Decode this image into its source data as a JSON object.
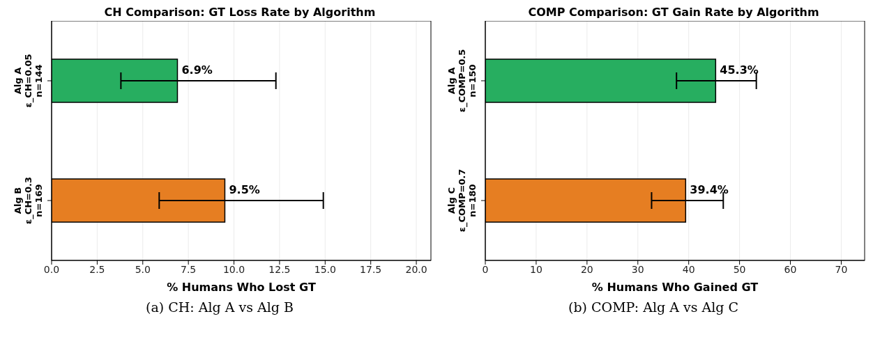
{
  "chart_data": [
    {
      "type": "bar",
      "orientation": "horizontal",
      "title": "CH Comparison: GT Loss Rate by Algorithm",
      "xlabel": "% Humans Who Lost GT",
      "categories": [
        "Alg A\nε_CH=0.05\nn=144",
        "Alg B\nε_CH=0.3\nn=169"
      ],
      "values": [
        6.9,
        9.5
      ],
      "colors": [
        "#27ae60",
        "#e67e22"
      ],
      "errors": [
        [
          3.8,
          12.3
        ],
        [
          5.9,
          14.9
        ]
      ],
      "value_labels": [
        "6.9%",
        "9.5%"
      ],
      "xlim": [
        0,
        20.8
      ],
      "xticks": [
        {
          "value": 0,
          "label": "0.0"
        },
        2.5,
        {
          "value": 5,
          "label": "5.0"
        },
        7.5,
        {
          "value": 10,
          "label": "10.0"
        },
        12.5,
        {
          "value": 15,
          "label": "15.0"
        },
        17.5,
        {
          "value": 20,
          "label": "20.0"
        }
      ],
      "grid": "x",
      "annotations": [
        "(a) CH: Alg A vs Alg B"
      ]
    },
    {
      "type": "bar",
      "orientation": "horizontal",
      "title": "COMP Comparison: GT Gain Rate by Algorithm",
      "xlabel": "% Humans Who Gained GT",
      "categories": [
        "Alg A\nε_COMP=0.5\nn=150",
        "Alg C\nε_COMP=0.7\nn=180"
      ],
      "values": [
        45.3,
        39.4
      ],
      "colors": [
        "#27ae60",
        "#e67e22"
      ],
      "errors": [
        [
          37.6,
          53.3
        ],
        [
          32.7,
          46.8
        ]
      ],
      "value_labels": [
        "45.3%",
        "39.4%"
      ],
      "xlim": [
        0,
        74.6
      ],
      "xticks": [
        0,
        10,
        20,
        30,
        40,
        50,
        60,
        70
      ],
      "grid": "x",
      "annotations": [
        "(b) COMP: Alg A vs Alg C"
      ]
    }
  ]
}
